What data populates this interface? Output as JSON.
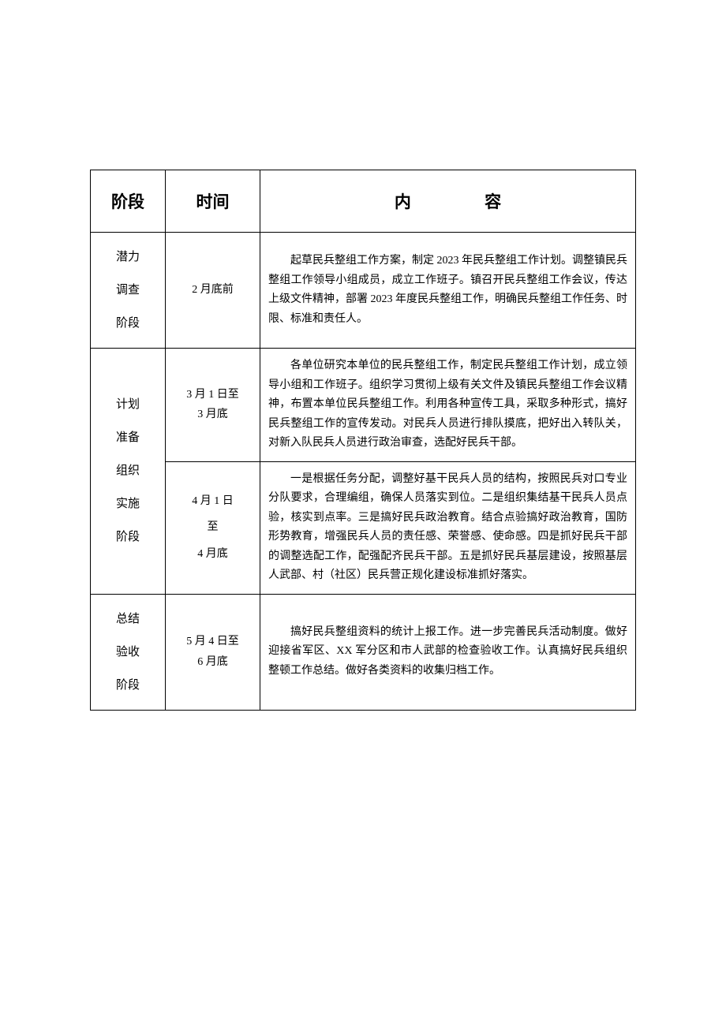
{
  "table": {
    "headers": {
      "phase": "阶段",
      "time": "时间",
      "content_char1": "内",
      "content_char2": "容"
    },
    "rows": [
      {
        "phase_lines": [
          "潜力",
          "调查",
          "阶段"
        ],
        "time": "2 月底前",
        "content": "起草民兵整组工作方案，制定 2023 年民兵整组工作计划。调整镇民兵整组工作领导小组成员，成立工作班子。镇召开民兵整组工作会议，传达上级文件精神，部署 2023 年度民兵整组工作，明确民兵整组工作任务、时限、标准和责任人。"
      },
      {
        "phase_span": true,
        "phase_lines": [
          "计划",
          "准备",
          "组织",
          "实施",
          "阶段"
        ],
        "time_lines": [
          "3 月 1 日至",
          "3 月底"
        ],
        "content": "各单位研究本单位的民兵整组工作，制定民兵整组工作计划，成立领导小组和工作班子。组织学习贯彻上级有关文件及镇民兵整组工作会议精神，布置本单位民兵整组工作。利用各种宣传工具，采取多种形式，搞好民兵整组工作的宣传发动。对民兵人员进行排队摸底，把好出入转队关，对新入队民兵人员进行政治审查，选配好民兵干部。"
      },
      {
        "time_lines": [
          "4 月 1 日",
          "至",
          "4 月底"
        ],
        "content": "一是根据任务分配，调整好基干民兵人员的结构，按照民兵对口专业分队要求，合理编组，确保人员落实到位。二是组织集结基干民兵人员点验，核实到点率。三是搞好民兵政治教育。结合点验搞好政治教育，国防形势教育，增强民兵人员的责任感、荣誉感、使命感。四是抓好民兵干部的调整选配工作，配强配齐民兵干部。五是抓好民兵基层建设，按照基层人武部、村（社区）民兵营正规化建设标准抓好落实。"
      },
      {
        "phase_lines": [
          "总结",
          "验收",
          "阶段"
        ],
        "time_lines": [
          "5 月 4 日至",
          "6 月底"
        ],
        "content": "搞好民兵整组资料的统计上报工作。进一步完善民兵活动制度。做好迎接省军区、XX 军分区和市人武部的检查验收工作。认真搞好民兵组织整顿工作总结。做好各类资料的收集归档工作。"
      }
    ]
  },
  "styling": {
    "border_color": "#000000",
    "background_color": "#ffffff",
    "header_fontsize": 21,
    "body_fontsize": 14,
    "phase_fontsize": 15,
    "line_height": 1.75,
    "col_widths": {
      "phase": 95,
      "time": 120
    }
  }
}
